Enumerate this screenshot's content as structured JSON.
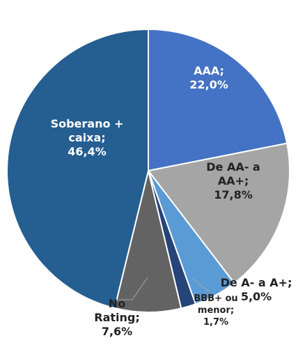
{
  "chart_data": {
    "type": "pie",
    "categories": [
      "AAA;",
      "De AA- a AA+;",
      "De A- a A+;",
      "BBB+ ou menor;",
      "No Rating;",
      "Soberano + caixa;"
    ],
    "values": [
      22.0,
      17.8,
      5.0,
      1.7,
      7.6,
      46.4
    ],
    "value_labels": [
      "22,0%",
      "17,8%",
      "5,0%",
      "1,7%",
      "7,6%",
      "46,4%"
    ],
    "colors": [
      "#4472c4",
      "#a5a5a5",
      "#5b9bd5",
      "#264478",
      "#636363",
      "#255e91"
    ]
  }
}
